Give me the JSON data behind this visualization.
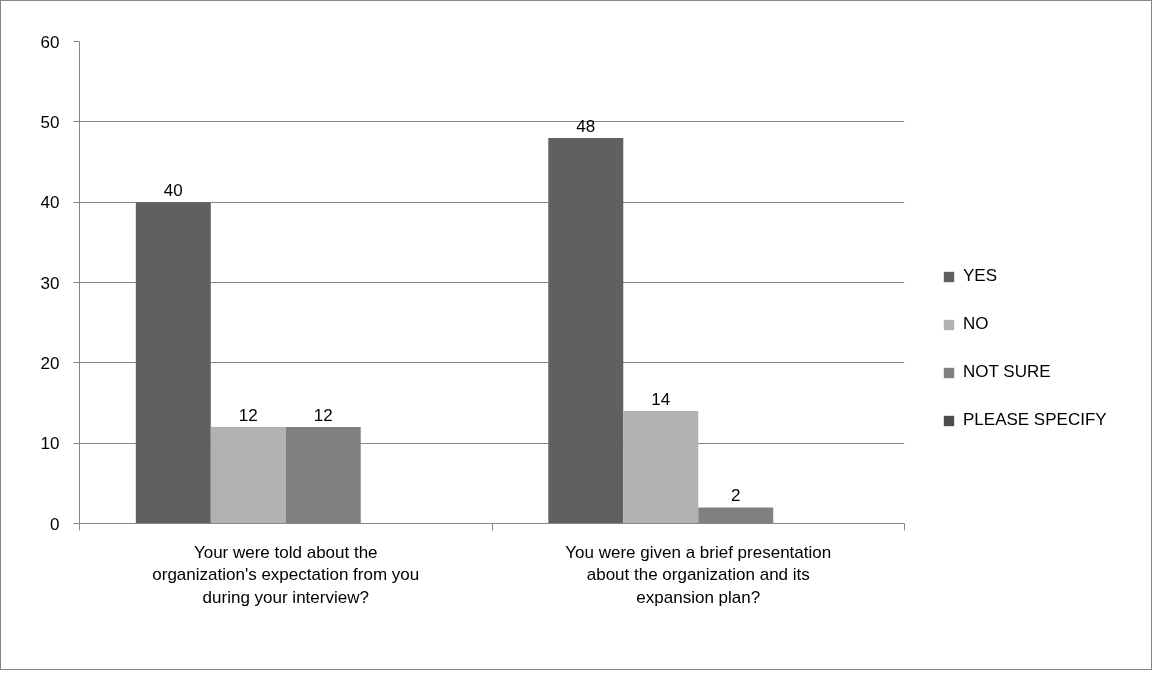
{
  "chart_data": {
    "type": "bar",
    "categories": [
      "Your were told about the organization's expectation from you during your interview?",
      "You were given a brief presentation about the organization and its expansion plan?"
    ],
    "series": [
      {
        "name": "YES",
        "color": "#606060",
        "values": [
          40,
          48
        ]
      },
      {
        "name": "NO",
        "color": "#b2b2b2",
        "values": [
          12,
          14
        ]
      },
      {
        "name": "NOT SURE",
        "color": "#808080",
        "values": [
          12,
          2
        ]
      },
      {
        "name": "PLEASE SPECIFY",
        "color": "#4d4d4d",
        "values": [
          null,
          null
        ]
      }
    ],
    "ylim": [
      0,
      60
    ],
    "yticks": [
      0,
      10,
      20,
      30,
      40,
      50,
      60
    ],
    "grid": "y",
    "legend": "right",
    "data_labels": true
  }
}
